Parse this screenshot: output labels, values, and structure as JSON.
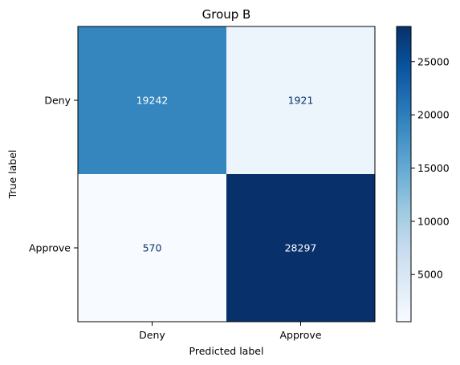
{
  "chart_data": {
    "type": "heatmap",
    "title": "Group B",
    "xlabel": "Predicted label",
    "ylabel": "True label",
    "x_categories": [
      "Deny",
      "Approve"
    ],
    "y_categories": [
      "Deny",
      "Approve"
    ],
    "values": [
      [
        19242,
        1921
      ],
      [
        570,
        28297
      ]
    ],
    "colormap": "Blues",
    "colorbar": {
      "ticks": [
        5000,
        10000,
        15000,
        20000,
        25000
      ],
      "tick_labels": [
        "5000",
        "10000",
        "15000",
        "20000",
        "25000"
      ],
      "min": 570,
      "max": 28297
    },
    "grid": false
  }
}
